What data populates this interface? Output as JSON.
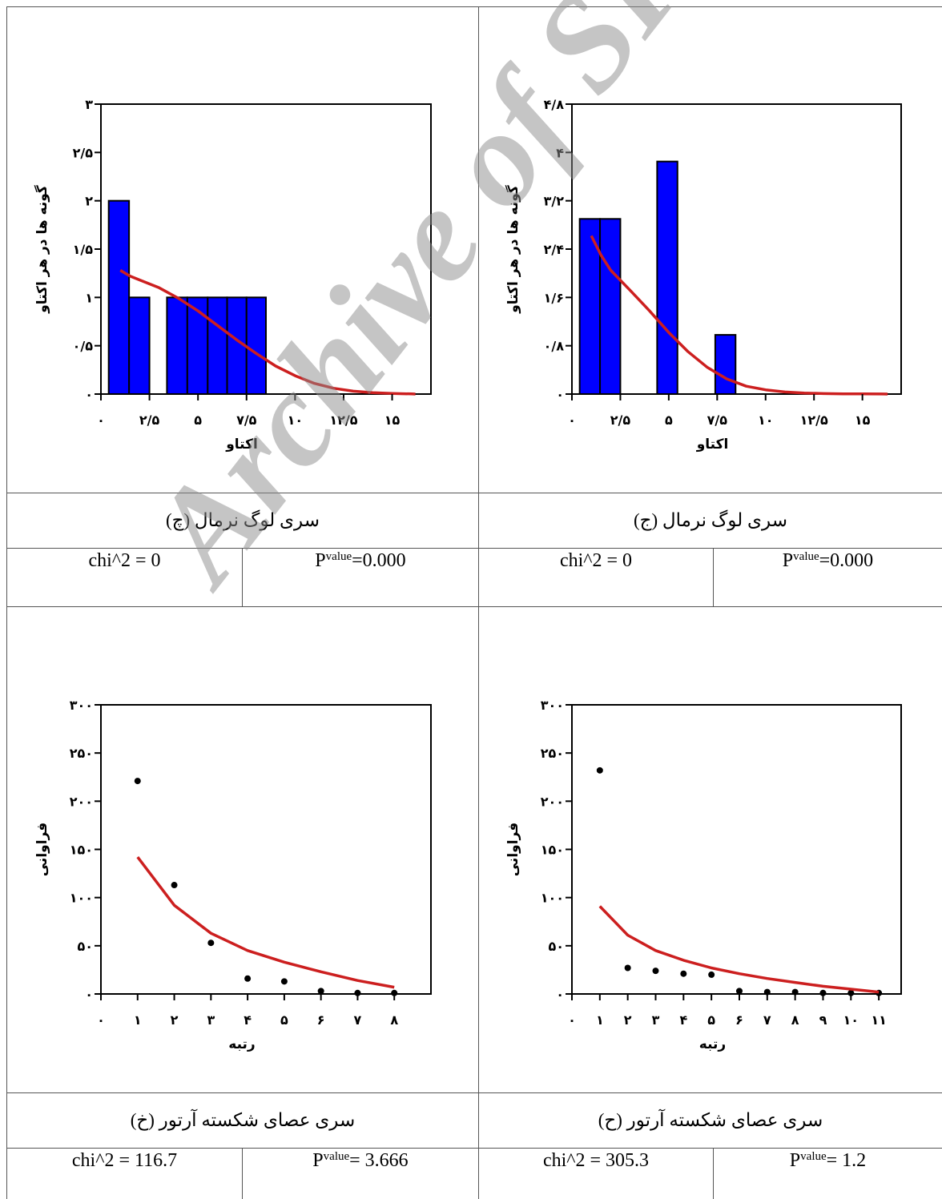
{
  "watermark": "Archive of SID",
  "colors": {
    "bar": "#0000ff",
    "curve": "#cc1f1f",
    "point": "#000000"
  },
  "panels": [
    {
      "caption": "سری لوگ نرمال (ج)",
      "chi2": "chi^2 = 0",
      "p_label": "P",
      "p_sub": "value",
      "p_value": " =0.000"
    },
    {
      "caption": "سری لوگ نرمال (چ)",
      "chi2": "chi^2 = 0",
      "p_label": "P",
      "p_sub": "value",
      "p_value": " =0.000"
    },
    {
      "caption": "سری عصای شکسته آرتور (ح)",
      "chi2": "chi^2 = 305.3",
      "p_label": "P",
      "p_sub": "value",
      "p_value": " = 1.2"
    },
    {
      "caption": "سری عصای شکسته آرتور (خ)",
      "chi2": "chi^2 = 116.7",
      "p_label": "P",
      "p_sub": "value",
      "p_value": " = 3.666"
    }
  ],
  "chart_data": [
    {
      "id": "lognormal-right",
      "type": "bar",
      "xlabel": "اکتاو",
      "ylabel": "گونه ها در هر اکتاو",
      "xlim": [
        0,
        17
      ],
      "ylim": [
        0,
        4.8
      ],
      "xticks": [
        0,
        2.5,
        5,
        7.5,
        10,
        12.5,
        15
      ],
      "xtick_labels": [
        "۰",
        "۲/۵",
        "۵",
        "۷/۵",
        "۱۰",
        "۱۲/۵",
        "۱۵"
      ],
      "yticks": [
        0,
        0.8,
        1.6,
        2.4,
        3.2,
        4,
        4.8
      ],
      "ytick_labels": [
        "۰",
        "۰/۸",
        "۱/۶",
        "۲/۴",
        "۳/۲",
        "۴",
        "۴/۸"
      ],
      "bars": [
        {
          "x0": 0.4,
          "x1": 1.45,
          "value": 2.9
        },
        {
          "x0": 1.45,
          "x1": 2.5,
          "value": 2.9
        },
        {
          "x0": 4.4,
          "x1": 5.45,
          "value": 3.85
        },
        {
          "x0": 7.4,
          "x1": 8.45,
          "value": 0.98
        }
      ],
      "curve": {
        "x": [
          1,
          1.5,
          2,
          3,
          4,
          5,
          6,
          7,
          8,
          9,
          10,
          11,
          12,
          13,
          14,
          15,
          16,
          16.3
        ],
        "y": [
          2.62,
          2.3,
          2.05,
          1.72,
          1.38,
          1.02,
          0.7,
          0.44,
          0.25,
          0.13,
          0.07,
          0.035,
          0.017,
          0.008,
          0.004,
          0.002,
          0.001,
          0.0
        ]
      }
    },
    {
      "id": "lognormal-left",
      "type": "bar",
      "xlabel": "اکتاو",
      "ylabel": "گونه ها در هر اکتاو",
      "xlim": [
        0,
        17
      ],
      "ylim": [
        0,
        3
      ],
      "xticks": [
        0,
        2.5,
        5,
        7.5,
        10,
        12.5,
        15
      ],
      "xtick_labels": [
        "۰",
        "۲/۵",
        "۵",
        "۷/۵",
        "۱۰",
        "۱۲/۵",
        "۱۵"
      ],
      "yticks": [
        0,
        0.5,
        1,
        1.5,
        2,
        2.5,
        3
      ],
      "ytick_labels": [
        "۰",
        "۰/۵",
        "۱",
        "۱/۵",
        "۲",
        "۲/۵",
        "۳"
      ],
      "bars": [
        {
          "x0": 0.4,
          "x1": 1.45,
          "value": 2
        },
        {
          "x0": 1.45,
          "x1": 2.5,
          "value": 1
        },
        {
          "x0": 3.4,
          "x1": 4.45,
          "value": 1
        },
        {
          "x0": 4.45,
          "x1": 5.5,
          "value": 1
        },
        {
          "x0": 5.5,
          "x1": 6.5,
          "value": 1
        },
        {
          "x0": 6.5,
          "x1": 7.5,
          "value": 1
        },
        {
          "x0": 7.5,
          "x1": 8.5,
          "value": 1
        }
      ],
      "curve": {
        "x": [
          1,
          1.5,
          2,
          3,
          4,
          5,
          6,
          7,
          8,
          9,
          10,
          11,
          12,
          13,
          14,
          15,
          16,
          16.2
        ],
        "y": [
          1.28,
          1.22,
          1.18,
          1.1,
          0.99,
          0.86,
          0.71,
          0.56,
          0.42,
          0.29,
          0.19,
          0.11,
          0.06,
          0.03,
          0.014,
          0.006,
          0.002,
          0.0
        ]
      }
    },
    {
      "id": "brokenstick-right",
      "type": "scatter",
      "xlabel": "رتبه",
      "ylabel": "فراوانی",
      "xlim": [
        0,
        11.8
      ],
      "ylim": [
        0,
        300
      ],
      "xticks": [
        0,
        1,
        2,
        3,
        4,
        5,
        6,
        7,
        8,
        9,
        10,
        11
      ],
      "xtick_labels": [
        "۰",
        "۱",
        "۲",
        "۳",
        "۴",
        "۵",
        "۶",
        "۷",
        "۸",
        "۹",
        "۱۰",
        "۱۱"
      ],
      "yticks": [
        0,
        50,
        100,
        150,
        200,
        250,
        300
      ],
      "ytick_labels": [
        "۰",
        "۵۰",
        "۱۰۰",
        "۱۵۰",
        "۲۰۰",
        "۲۵۰",
        "۳۰۰"
      ],
      "points": {
        "x": [
          1,
          2,
          3,
          4,
          5,
          6,
          7,
          8,
          9,
          10,
          11
        ],
        "y": [
          232,
          27,
          24,
          21,
          20,
          3,
          2,
          2,
          1,
          1,
          1
        ]
      },
      "curve": {
        "x": [
          1,
          2,
          3,
          4,
          5,
          6,
          7,
          8,
          9,
          10,
          11
        ],
        "y": [
          91,
          61,
          45,
          35,
          27,
          21,
          16,
          12,
          8,
          5,
          2
        ]
      }
    },
    {
      "id": "brokenstick-left",
      "type": "scatter",
      "xlabel": "رتبه",
      "ylabel": "فراوانی",
      "xlim": [
        0,
        9
      ],
      "ylim": [
        0,
        300
      ],
      "xticks": [
        0,
        1,
        2,
        3,
        4,
        5,
        6,
        7,
        8
      ],
      "xtick_labels": [
        "۰",
        "۱",
        "۲",
        "۳",
        "۴",
        "۵",
        "۶",
        "۷",
        "۸"
      ],
      "yticks": [
        0,
        50,
        100,
        150,
        200,
        250,
        300
      ],
      "ytick_labels": [
        "۰",
        "۵۰",
        "۱۰۰",
        "۱۵۰",
        "۲۰۰",
        "۲۵۰",
        "۳۰۰"
      ],
      "points": {
        "x": [
          1,
          2,
          3,
          4,
          5,
          6,
          7,
          8
        ],
        "y": [
          221,
          113,
          53,
          16,
          13,
          3,
          1,
          1
        ]
      },
      "curve": {
        "x": [
          1,
          2,
          3,
          4,
          5,
          6,
          7,
          8
        ],
        "y": [
          142,
          92,
          63,
          45,
          33,
          23,
          14,
          7
        ]
      }
    }
  ]
}
